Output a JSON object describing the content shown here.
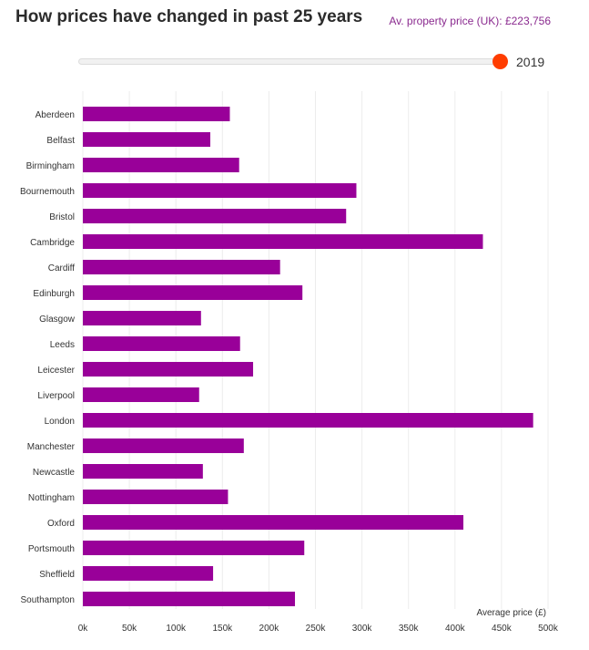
{
  "header": {
    "title": "How prices have changed in past 25 years",
    "avg_price_label": "Av. property price (UK): £223,756"
  },
  "slider": {
    "year": "2019",
    "value": 1.0
  },
  "colors": {
    "bar": "#990099",
    "thumb": "#ff3d00",
    "accent_text": "#8a2a8f"
  },
  "chart_data": {
    "type": "bar",
    "orientation": "horizontal",
    "categories": [
      "Aberdeen",
      "Belfast",
      "Birmingham",
      "Bournemouth",
      "Bristol",
      "Cambridge",
      "Cardiff",
      "Edinburgh",
      "Glasgow",
      "Leeds",
      "Leicester",
      "Liverpool",
      "London",
      "Manchester",
      "Newcastle",
      "Nottingham",
      "Oxford",
      "Portsmouth",
      "Sheffield",
      "Southampton"
    ],
    "values": [
      158000,
      137000,
      168000,
      294000,
      283000,
      430000,
      212000,
      236000,
      127000,
      169000,
      183000,
      125000,
      484000,
      173000,
      129000,
      156000,
      409000,
      238000,
      140000,
      228000
    ],
    "xlabel": "Average price (£)",
    "ylabel": "",
    "xlim": [
      0,
      500000
    ],
    "xticks": [
      0,
      50000,
      100000,
      150000,
      200000,
      250000,
      300000,
      350000,
      400000,
      450000,
      500000
    ],
    "xtick_labels": [
      "0k",
      "50k",
      "100k",
      "150k",
      "200k",
      "250k",
      "300k",
      "350k",
      "400k",
      "450k",
      "500k"
    ],
    "grid": "vertical"
  }
}
